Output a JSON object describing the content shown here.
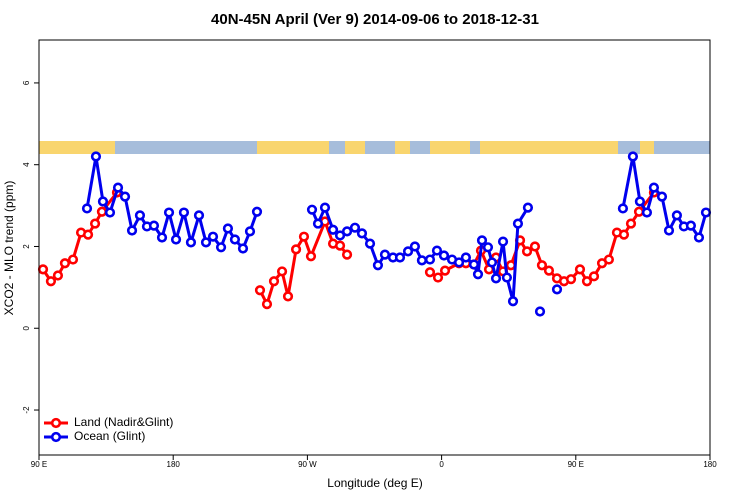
{
  "chart_data": {
    "type": "line",
    "title": "40N-45N April (Ver 9)   2014-09-06 to 2018-12-31",
    "x_label": "Longitude (deg E)",
    "y_label": "XCO2 - MLO trend (ppm)",
    "xlim": [
      90,
      540
    ],
    "xticks": [
      {
        "value": 90,
        "label": "90 E"
      },
      180,
      {
        "value": 270,
        "label": "90 W"
      },
      {
        "value": 360,
        "label": "0"
      },
      {
        "value": 450,
        "label": "90 E"
      },
      {
        "value": 540,
        "label": "180"
      }
    ],
    "ylim": [
      -3.1,
      7.05
    ],
    "yticks": [
      -2,
      0,
      2,
      4,
      6
    ],
    "legend": "bottom-left",
    "series": [
      {
        "name": "Land (Nadir&Glint)",
        "color": "#ff0000",
        "x": [
          92.7,
          98.0,
          102.7,
          107.4,
          112.8,
          118.2,
          122.9,
          127.6,
          132.2,
          142.3,
          null,
          238.2,
          242.9,
          247.6,
          253.0,
          257.0,
          262.4,
          267.7,
          272.4,
          281.8,
          287.2,
          291.9,
          296.6,
          null,
          352.2,
          357.6,
          362.3,
          371.7,
          376.3,
          381.7,
          386.4,
          391.8,
          396.5,
          401.2,
          406.5,
          412.6,
          417.3,
          422.6,
          427.3,
          432.0,
          437.4,
          442.1,
          446.8,
          452.8,
          457.5,
          462.2,
          467.6,
          472.2,
          477.6,
          482.3,
          487.0,
          492.4,
          502.4
        ],
        "values": [
          1.44,
          1.15,
          1.29,
          1.59,
          1.68,
          2.34,
          2.29,
          2.56,
          2.85,
          3.32,
          null,
          0.93,
          0.59,
          1.15,
          1.39,
          0.78,
          1.93,
          2.24,
          1.76,
          2.61,
          2.07,
          2.02,
          1.8,
          null,
          1.37,
          1.24,
          1.41,
          1.59,
          1.59,
          1.56,
          1.9,
          1.44,
          1.73,
          1.39,
          1.54,
          2.15,
          1.88,
          2.0,
          1.54,
          1.41,
          1.22,
          1.15,
          1.2,
          1.44,
          1.15,
          1.27,
          1.59,
          1.68,
          2.34,
          2.29,
          2.56,
          2.85,
          3.32
        ]
      },
      {
        "name": "Ocean (Glint)",
        "color": "#0000ee",
        "x": [
          122.2,
          128.2,
          132.9,
          137.6,
          143.0,
          147.7,
          152.4,
          157.7,
          162.4,
          167.1,
          172.5,
          177.2,
          181.9,
          187.2,
          191.9,
          197.3,
          202.0,
          206.7,
          212.1,
          216.7,
          221.4,
          226.8,
          231.5,
          236.2,
          null,
          273.1,
          277.1,
          281.8,
          287.2,
          291.9,
          296.6,
          301.9,
          306.6,
          312.0,
          317.3,
          322.0,
          327.4,
          332.1,
          337.5,
          342.1,
          346.8,
          352.2,
          356.9,
          361.6,
          367.0,
          371.7,
          376.3,
          381.7,
          384.4,
          387.1,
          391.1,
          393.8,
          396.5,
          401.2,
          403.8,
          407.9,
          411.2,
          417.9,
          null,
          426.0,
          null,
          437.4,
          null,
          481.6,
          488.3,
          493.0,
          497.7,
          502.4,
          507.8,
          512.5,
          517.8,
          522.5,
          527.2,
          532.6,
          537.3
        ],
        "values": [
          2.93,
          4.2,
          3.1,
          2.83,
          3.44,
          3.22,
          2.39,
          2.76,
          2.49,
          2.51,
          2.22,
          2.83,
          2.17,
          2.83,
          2.1,
          2.76,
          2.1,
          2.24,
          1.98,
          2.44,
          2.17,
          1.95,
          2.37,
          2.85,
          null,
          2.9,
          2.56,
          2.95,
          2.41,
          2.27,
          2.37,
          2.46,
          2.32,
          2.07,
          1.54,
          1.8,
          1.73,
          1.73,
          1.88,
          2.0,
          1.66,
          1.68,
          1.9,
          1.78,
          1.68,
          1.61,
          1.73,
          1.56,
          1.32,
          2.15,
          1.98,
          1.61,
          1.22,
          2.12,
          1.24,
          0.66,
          2.56,
          2.95,
          null,
          0.41,
          null,
          0.95,
          null,
          2.93,
          4.2,
          3.1,
          2.83,
          3.44,
          3.22,
          2.39,
          2.76,
          2.49,
          2.51,
          2.22,
          2.83
        ]
      }
    ]
  }
}
